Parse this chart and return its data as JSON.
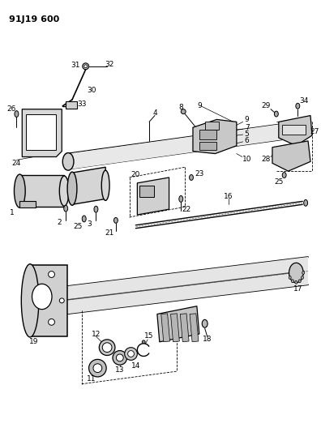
{
  "title": "91J19 600",
  "bg_color": "#ffffff",
  "fig_width": 3.96,
  "fig_height": 5.33,
  "dpi": 100
}
